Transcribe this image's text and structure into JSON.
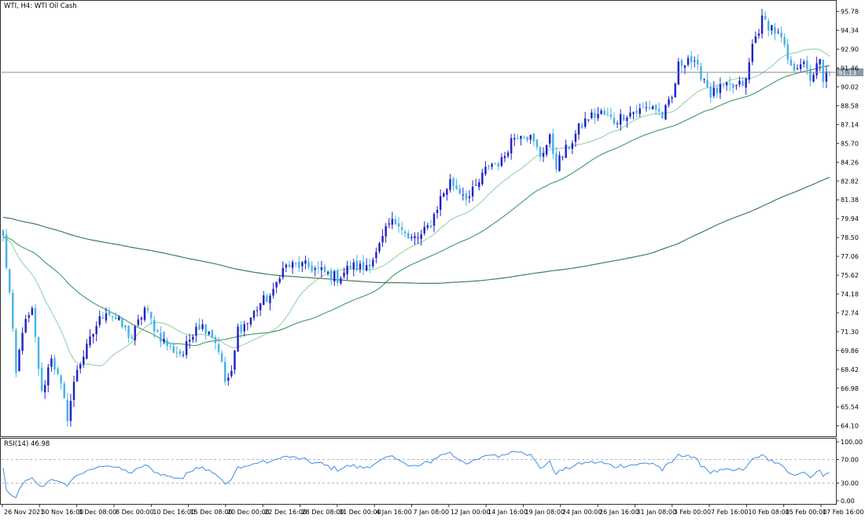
{
  "main_title": "WTI, H4:  WTI Oil Cash",
  "rsi_label": "RSI(14) 46.98",
  "current_price_label": "91.13",
  "colors": {
    "bull_candle": "#2323c8",
    "bear_candle": "#46b4e6",
    "ma_fast": "#9cd6b0",
    "ma_mid": "#4f9f6d",
    "ma_slow": "#3f7f5a",
    "rsi_line": "#3e8ee6",
    "price_line": "#888888",
    "axis": "#333333",
    "rsi_levels": "#b5b5b5"
  },
  "chart_data": [
    {
      "type": "candlestick",
      "title": "WTI, H4:  WTI Oil Cash",
      "ylim": [
        63.3,
        96.6
      ],
      "price_ticks": [
        "95.78",
        "94.34",
        "92.90",
        "91.46",
        "90.02",
        "88.58",
        "87.14",
        "85.70",
        "84.26",
        "82.82",
        "81.38",
        "79.94",
        "78.50",
        "77.06",
        "75.62",
        "74.18",
        "72.74",
        "71.30",
        "69.86",
        "68.42",
        "66.98",
        "65.54",
        "64.10"
      ],
      "current_price": 91.13,
      "x_labels": [
        "26 Nov 2021",
        "30 Nov 16:00",
        "3 Dec 08:00",
        "8 Dec 00:00",
        "10 Dec 16:00",
        "15 Dec 08:00",
        "20 Dec 00:00",
        "22 Dec 16:00",
        "28 Dec 08:00",
        "31 Dec 00:00",
        "4 Jan 16:00",
        "7 Jan 08:00",
        "12 Jan 00:00",
        "14 Jan 16:00",
        "19 Jan 08:00",
        "24 Jan 00:00",
        "26 Jan 16:00",
        "31 Jan 08:00",
        "3 Feb 00:00",
        "7 Feb 16:00",
        "10 Feb 08:00",
        "15 Feb 00:00",
        "17 Feb 16:00"
      ],
      "candle_count": 258,
      "close_path": [
        [
          0,
          78.5
        ],
        [
          2,
          74.2
        ],
        [
          4,
          68.0
        ],
        [
          6,
          71.5
        ],
        [
          9,
          72.8
        ],
        [
          12,
          66.5
        ],
        [
          15,
          69.5
        ],
        [
          18,
          67.0
        ],
        [
          20,
          64.8
        ],
        [
          23,
          68.5
        ],
        [
          26,
          70.0
        ],
        [
          29,
          71.8
        ],
        [
          32,
          73.0
        ],
        [
          36,
          72.0
        ],
        [
          40,
          70.8
        ],
        [
          44,
          73.1
        ],
        [
          48,
          71.2
        ],
        [
          52,
          70.0
        ],
        [
          56,
          69.6
        ],
        [
          60,
          71.9
        ],
        [
          64,
          71.5
        ],
        [
          67,
          70.0
        ],
        [
          69,
          67.5
        ],
        [
          71,
          68.0
        ],
        [
          73,
          71.5
        ],
        [
          76,
          72.0
        ],
        [
          80,
          73.5
        ],
        [
          84,
          74.2
        ],
        [
          86,
          75.8
        ],
        [
          88,
          76.3
        ],
        [
          92,
          76.4
        ],
        [
          96,
          76.2
        ],
        [
          100,
          75.8
        ],
        [
          104,
          75.4
        ],
        [
          108,
          76.3
        ],
        [
          112,
          76.2
        ],
        [
          116,
          77.2
        ],
        [
          120,
          79.5
        ],
        [
          123,
          79.8
        ],
        [
          126,
          78.3
        ],
        [
          130,
          78.6
        ],
        [
          133,
          79.6
        ],
        [
          136,
          81.5
        ],
        [
          139,
          82.8
        ],
        [
          142,
          82.1
        ],
        [
          145,
          81.6
        ],
        [
          148,
          82.7
        ],
        [
          151,
          84.1
        ],
        [
          155,
          84.3
        ],
        [
          158,
          86.0
        ],
        [
          161,
          86.6
        ],
        [
          164,
          86.1
        ],
        [
          167,
          84.8
        ],
        [
          170,
          86.0
        ],
        [
          172,
          84.1
        ],
        [
          174,
          84.8
        ],
        [
          176,
          85.5
        ],
        [
          179,
          86.8
        ],
        [
          182,
          87.7
        ],
        [
          186,
          88.0
        ],
        [
          190,
          87.4
        ],
        [
          194,
          88.0
        ],
        [
          198,
          88.2
        ],
        [
          202,
          88.6
        ],
        [
          205,
          87.8
        ],
        [
          208,
          89.1
        ],
        [
          210,
          91.6
        ],
        [
          213,
          92.3
        ],
        [
          216,
          91.3
        ],
        [
          218,
          90.7
        ],
        [
          220,
          89.5
        ],
        [
          224,
          89.9
        ],
        [
          228,
          90.0
        ],
        [
          231,
          90.4
        ],
        [
          233,
          93.2
        ],
        [
          236,
          95.1
        ],
        [
          239,
          94.6
        ],
        [
          242,
          93.6
        ],
        [
          245,
          91.3
        ],
        [
          248,
          92.0
        ],
        [
          251,
          90.7
        ],
        [
          254,
          91.9
        ],
        [
          255,
          90.2
        ],
        [
          256,
          91.0
        ],
        [
          257,
          91.13
        ]
      ]
    },
    {
      "type": "line",
      "title": "RSI(14) 46.98",
      "ylim": [
        0,
        100
      ],
      "ticks": [
        "100.00",
        "70.00",
        "30.00",
        "0.00"
      ],
      "levels": [
        70,
        30
      ],
      "last_value": 46.98
    }
  ]
}
